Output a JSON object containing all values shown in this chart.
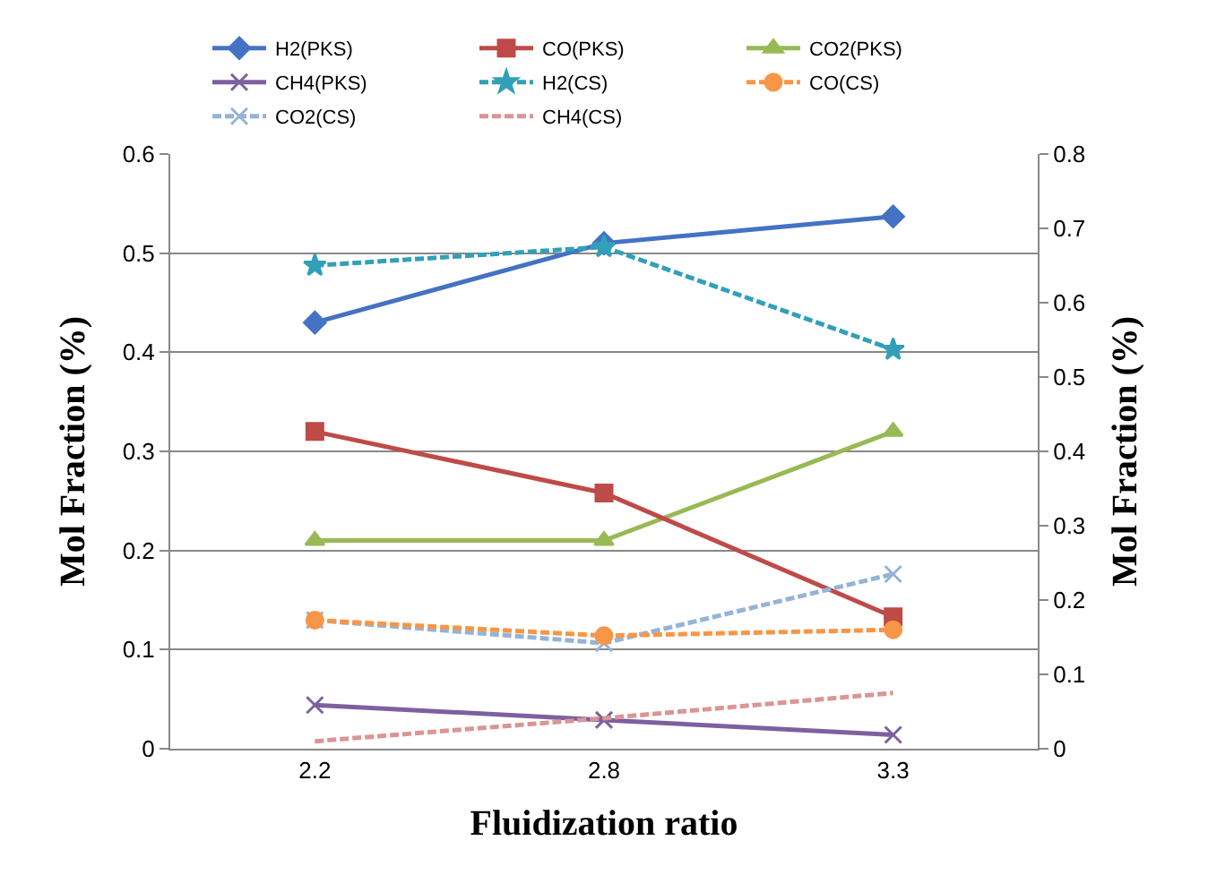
{
  "chart_data": {
    "type": "line",
    "xlabel": "Fluidization ratio",
    "ylabel": "Mol Fraction (%)",
    "y2label": "Mol Fraction (%)",
    "categories": [
      "2.2",
      "2.8",
      "3.3"
    ],
    "ylim": [
      0,
      0.6
    ],
    "yticks": [
      {
        "value": 0,
        "label": "0"
      },
      0.1,
      0.2,
      0.3,
      0.4,
      0.5,
      0.6
    ],
    "y2lim": [
      0,
      0.8
    ],
    "y2ticks": [
      {
        "value": 0,
        "label": "0"
      },
      0.1,
      0.2,
      0.3,
      0.4,
      0.5,
      0.6,
      0.7,
      0.8
    ],
    "grid": "y",
    "legend": "top",
    "series": [
      {
        "name": "H2(PKS)",
        "color": "#4472c4",
        "values": [
          0.43,
          0.51,
          0.537
        ],
        "marker": "diamond",
        "line_style": "solid"
      },
      {
        "name": "CO(PKS)",
        "color": "#be4b48",
        "values": [
          0.32,
          0.258,
          0.133
        ],
        "marker": "square",
        "line_style": "solid"
      },
      {
        "name": "CO2(PKS)",
        "color": "#98b954",
        "values": [
          0.21,
          0.21,
          0.32
        ],
        "marker": "triangle",
        "line_style": "solid"
      },
      {
        "name": "CH4(PKS)",
        "color": "#7d60a0",
        "values": [
          0.044,
          0.029,
          0.014
        ],
        "marker": "cross",
        "line_style": "solid"
      },
      {
        "name": "H2(CS)",
        "color": "#31a0b8",
        "values": [
          0.65,
          0.675,
          0.537
        ],
        "marker": "star",
        "line_style": "dashed",
        "axis": "y2"
      },
      {
        "name": "CO(CS)",
        "color": "#f79646",
        "values": [
          0.173,
          0.152,
          0.16
        ],
        "marker": "circle",
        "line_style": "dashed",
        "axis": "y2"
      },
      {
        "name": "CO2(CS)",
        "color": "#95b3d7",
        "values": [
          0.173,
          0.142,
          0.235
        ],
        "marker": "cross",
        "line_style": "dashed",
        "axis": "y2"
      },
      {
        "name": "CH4(CS)",
        "color": "#d99694",
        "values": [
          0.01,
          0.041,
          0.075
        ],
        "marker": "none",
        "line_style": "dashed",
        "axis": "y2"
      }
    ]
  }
}
